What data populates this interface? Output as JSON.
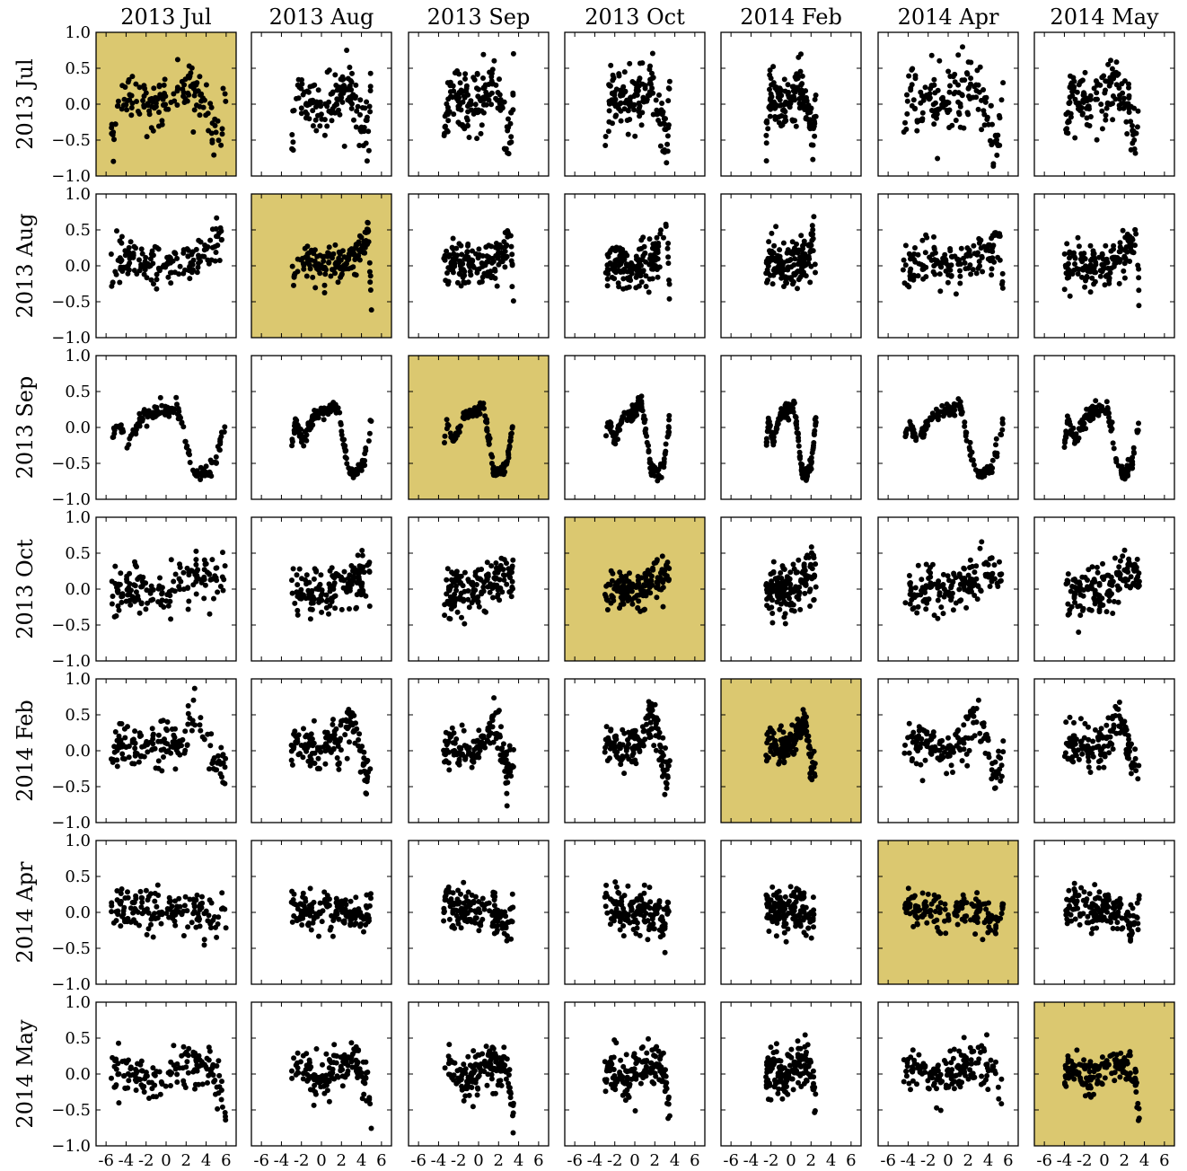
{
  "chart_data": {
    "type": "scatter",
    "layout": "scatter-matrix",
    "column_titles": [
      "2013 Jul",
      "2013 Aug",
      "2013 Sep",
      "2013 Oct",
      "2014 Feb",
      "2014 Apr",
      "2014 May"
    ],
    "row_labels": [
      "2013 Jul",
      "2013 Aug",
      "2013 Sep",
      "2013 Oct",
      "2014 Feb",
      "2014 Apr",
      "2014 May"
    ],
    "xlim": [
      -7,
      7
    ],
    "ylim": [
      -1.0,
      1.0
    ],
    "x_ticks": [
      -6,
      -4,
      -2,
      0,
      2,
      4,
      6
    ],
    "x_tick_labels": [
      "-6",
      "-4",
      "-2",
      "0",
      "2",
      "4",
      "6"
    ],
    "y_ticks": [
      1.0,
      0.5,
      0.0,
      -0.5,
      -1.0
    ],
    "y_tick_labels": [
      "1.0",
      "0.5",
      "0.0",
      "−0.5",
      "−1.0"
    ],
    "diagonal_highlight_color": "#dbc870",
    "point_color": "#000000",
    "x_ranges_by_column": [
      [
        -5.5,
        6
      ],
      [
        -3,
        5
      ],
      [
        -3.5,
        3.5
      ],
      [
        -3,
        3.5
      ],
      [
        -2.5,
        2.5
      ],
      [
        -4.5,
        5.5
      ],
      [
        -4,
        3.5
      ]
    ],
    "curve_profiles_by_row": [
      {
        "name": "2013 Jul",
        "knots": [
          [
            -5.5,
            -0.5
          ],
          [
            -4.5,
            0.15
          ],
          [
            -3,
            0.1
          ],
          [
            -1.5,
            0.0
          ],
          [
            0.5,
            0.1
          ],
          [
            2.2,
            0.3
          ],
          [
            3,
            0.1
          ],
          [
            4,
            -0.25
          ],
          [
            5,
            -0.5
          ],
          [
            5.5,
            0.3
          ]
        ],
        "noise": 0.2
      },
      {
        "name": "2013 Aug",
        "knots": [
          [
            -5.5,
            -0.1
          ],
          [
            -4,
            0.1
          ],
          [
            -2,
            0.0
          ],
          [
            0,
            0.0
          ],
          [
            2,
            0.05
          ],
          [
            4,
            0.2
          ],
          [
            5,
            0.5
          ],
          [
            5.5,
            -0.4
          ]
        ],
        "noise": 0.15
      },
      {
        "name": "2013 Sep",
        "knots": [
          [
            -5,
            -0.3
          ],
          [
            -4.5,
            0.1
          ],
          [
            -3.5,
            -0.2
          ],
          [
            -2,
            0.15
          ],
          [
            0,
            0.25
          ],
          [
            1,
            0.3
          ],
          [
            2.5,
            -0.6
          ],
          [
            3.5,
            -0.65
          ],
          [
            4.5,
            -0.5
          ],
          [
            5.5,
            0.1
          ]
        ],
        "noise": 0.05
      },
      {
        "name": "2013 Oct",
        "knots": [
          [
            -5.5,
            -0.1
          ],
          [
            -3,
            0.0
          ],
          [
            0,
            -0.05
          ],
          [
            3,
            0.15
          ],
          [
            5.5,
            0.2
          ]
        ],
        "noise": 0.17
      },
      {
        "name": "2014 Feb",
        "knots": [
          [
            -5.5,
            0.0
          ],
          [
            -4.5,
            0.1
          ],
          [
            -3,
            0.0
          ],
          [
            -1,
            0.05
          ],
          [
            1,
            0.15
          ],
          [
            2.5,
            0.45
          ],
          [
            3.5,
            0.2
          ],
          [
            4.5,
            -0.3
          ],
          [
            5.5,
            -0.2
          ]
        ],
        "noise": 0.15
      },
      {
        "name": "2014 Apr",
        "knots": [
          [
            -5.5,
            0.1
          ],
          [
            -3,
            0.05
          ],
          [
            -1,
            0.0
          ],
          [
            1,
            0.05
          ],
          [
            3,
            0.0
          ],
          [
            4.5,
            -0.2
          ],
          [
            5.5,
            0.1
          ]
        ],
        "noise": 0.14
      },
      {
        "name": "2014 May",
        "knots": [
          [
            -4.5,
            0.0
          ],
          [
            -3.5,
            0.1
          ],
          [
            -1,
            -0.1
          ],
          [
            1,
            0.1
          ],
          [
            2.5,
            0.15
          ],
          [
            4,
            0.1
          ],
          [
            5,
            -0.1
          ],
          [
            5.5,
            -0.6
          ]
        ],
        "noise": 0.15
      }
    ],
    "points_per_panel": 150
  }
}
